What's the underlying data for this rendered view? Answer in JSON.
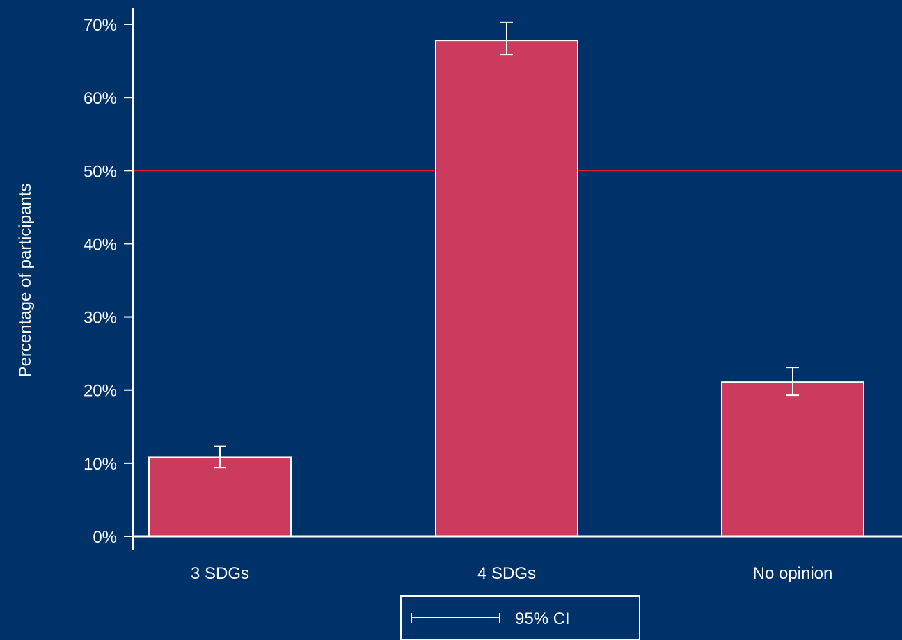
{
  "chart_data": {
    "type": "bar",
    "categories": [
      "3 SDGs",
      "4 SDGs",
      "No opinion"
    ],
    "values": [
      10.8,
      67.8,
      21.1
    ],
    "ci_lower": [
      9.4,
      65.9,
      19.3
    ],
    "ci_upper": [
      12.3,
      70.3,
      23.1
    ],
    "title": "",
    "xlabel": "",
    "ylabel": "Percentage of participants",
    "ylim": [
      0,
      70
    ],
    "yticks": [
      0,
      10,
      20,
      30,
      40,
      50,
      60,
      70
    ],
    "ytick_labels": [
      "0%",
      "10%",
      "20%",
      "30%",
      "40%",
      "50%",
      "60%",
      "70%"
    ],
    "reference_line": 50,
    "legend": {
      "entries": [
        "95% CI"
      ],
      "position": "bottom-center"
    },
    "grid": false,
    "colors": {
      "background": "#00326a",
      "bar_fill": "#cc3a5e",
      "bar_outline": "#ffffff",
      "reference_line": "#e0201e",
      "axis": "#ffffff",
      "text": "#ffffff",
      "error_bar": "#ffffff"
    }
  }
}
